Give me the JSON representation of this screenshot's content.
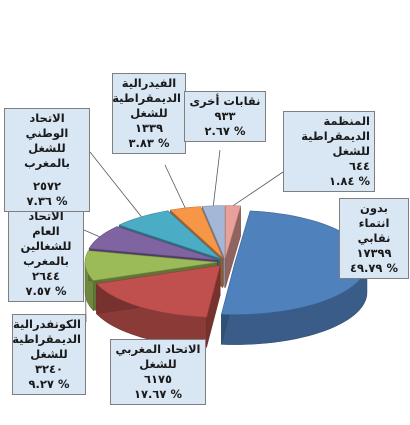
{
  "chart_data": {
    "type": "pie",
    "style": "3d-exploded",
    "colors_note": "slices in clockwise order from 12 o'clock",
    "slices": [
      {
        "name": "المنظمة\nالديمقراطية\nللشغل",
        "value": "٦٤٤",
        "percent": "% ١.٨٤",
        "pct": 1.84,
        "color": "#e8a09a"
      },
      {
        "name": "بدون انتماء\nنقابي",
        "value": "١٧٣٩٩",
        "percent": "% ٤٩.٧٩",
        "pct": 49.79,
        "color": "#4f81bd"
      },
      {
        "name": "الاتحاد المغربي\nللشغل",
        "value": "٦١٧٥",
        "percent": "% ١٧.٦٧",
        "pct": 17.67,
        "color": "#c0504d"
      },
      {
        "name": "الكونفدرالية\nالديمقراطية\nللشغل",
        "value": "٣٢٤٠",
        "percent": "% ٩.٢٧",
        "pct": 9.27,
        "color": "#9bbb59"
      },
      {
        "name": "الاتحاد العام\nللشغالين\nبالمغرب",
        "value": "٢٦٤٤",
        "percent": "% ٧.٥٧",
        "pct": 7.57,
        "color": "#8064a2"
      },
      {
        "name": "الاتحاد الوطني\nللشغل بالمغرب",
        "value": "٢٥٧٢",
        "percent": "% ٧.٣٦",
        "pct": 7.36,
        "color": "#4bacc6"
      },
      {
        "name": "الفيدرالية\nالديمقراطية\nللشغل",
        "value": "١٣٣٩",
        "percent": "% ٣.٨٣",
        "pct": 3.83,
        "color": "#f79646"
      },
      {
        "name": "نقابات أخرى",
        "value": "٩٣٣",
        "percent": "% ٢.٦٧",
        "pct": 2.67,
        "color": "#a5b7d6"
      }
    ]
  }
}
